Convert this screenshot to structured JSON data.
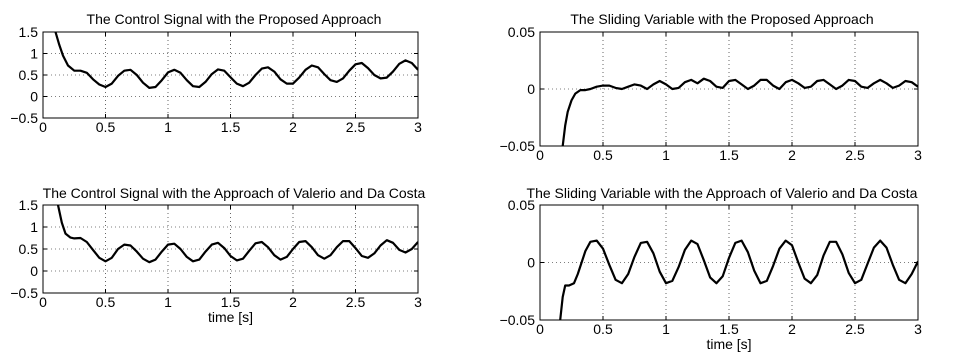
{
  "chart_data": [
    {
      "type": "line",
      "title": "The Control Signal with the Proposed Approach",
      "xlabel": "",
      "ylabel": "",
      "xlim": [
        0,
        3
      ],
      "ylim": [
        -0.5,
        1.5
      ],
      "xticks": [
        0,
        0.5,
        1,
        1.5,
        2,
        2.5,
        3
      ],
      "yticks": [
        -0.5,
        0,
        0.5,
        1,
        1.5
      ],
      "xtick_labels": [
        "0",
        "0.5",
        "1",
        "1.5",
        "2",
        "2.5",
        "3"
      ],
      "ytick_labels": [
        "−0.5",
        "0",
        "0.5",
        "1",
        "1.5"
      ],
      "grid": true,
      "series": [
        {
          "x": [
            0.1,
            0.13,
            0.16,
            0.2,
            0.25,
            0.3,
            0.35,
            0.4,
            0.45,
            0.5,
            0.55,
            0.6,
            0.65,
            0.7,
            0.75,
            0.8,
            0.85,
            0.9,
            0.95,
            1.0,
            1.05,
            1.1,
            1.15,
            1.2,
            1.25,
            1.3,
            1.35,
            1.4,
            1.45,
            1.5,
            1.55,
            1.6,
            1.65,
            1.7,
            1.75,
            1.8,
            1.85,
            1.9,
            1.95,
            2.0,
            2.05,
            2.1,
            2.15,
            2.2,
            2.25,
            2.3,
            2.35,
            2.4,
            2.45,
            2.5,
            2.55,
            2.6,
            2.65,
            2.7,
            2.75,
            2.8,
            2.85,
            2.9,
            2.95,
            3.0
          ],
          "y": [
            1.5,
            1.2,
            0.95,
            0.72,
            0.6,
            0.6,
            0.55,
            0.4,
            0.28,
            0.22,
            0.3,
            0.48,
            0.6,
            0.62,
            0.5,
            0.32,
            0.2,
            0.22,
            0.38,
            0.56,
            0.62,
            0.55,
            0.38,
            0.24,
            0.22,
            0.34,
            0.52,
            0.63,
            0.6,
            0.45,
            0.3,
            0.24,
            0.32,
            0.5,
            0.65,
            0.68,
            0.58,
            0.4,
            0.3,
            0.3,
            0.44,
            0.62,
            0.72,
            0.68,
            0.52,
            0.38,
            0.34,
            0.42,
            0.6,
            0.75,
            0.78,
            0.66,
            0.5,
            0.42,
            0.44,
            0.58,
            0.76,
            0.84,
            0.78,
            0.62
          ]
        }
      ]
    },
    {
      "type": "line",
      "title": "The Sliding Variable with the Proposed Approach",
      "xlabel": "",
      "ylabel": "",
      "xlim": [
        0,
        3
      ],
      "ylim": [
        -0.05,
        0.05
      ],
      "xticks": [
        0,
        0.5,
        1,
        1.5,
        2,
        2.5,
        3
      ],
      "yticks": [
        -0.05,
        0,
        0.05
      ],
      "xtick_labels": [
        "0",
        "0.5",
        "1",
        "1.5",
        "2",
        "2.5",
        "3"
      ],
      "ytick_labels": [
        "−0.05",
        "0",
        "0.05"
      ],
      "grid": true,
      "series": [
        {
          "x": [
            0.18,
            0.2,
            0.22,
            0.25,
            0.28,
            0.32,
            0.36,
            0.4,
            0.45,
            0.5,
            0.55,
            0.6,
            0.65,
            0.7,
            0.75,
            0.8,
            0.85,
            0.9,
            0.95,
            1.0,
            1.05,
            1.1,
            1.15,
            1.2,
            1.25,
            1.3,
            1.35,
            1.4,
            1.45,
            1.5,
            1.55,
            1.6,
            1.65,
            1.7,
            1.75,
            1.8,
            1.85,
            1.9,
            1.95,
            2.0,
            2.05,
            2.1,
            2.15,
            2.2,
            2.25,
            2.3,
            2.35,
            2.4,
            2.45,
            2.5,
            2.55,
            2.6,
            2.65,
            2.7,
            2.75,
            2.8,
            2.85,
            2.9,
            2.95,
            3.0
          ],
          "y": [
            -0.05,
            -0.032,
            -0.02,
            -0.01,
            -0.004,
            -0.001,
            -0.001,
            0.0,
            0.002,
            0.003,
            0.003,
            0.001,
            0.0,
            0.002,
            0.004,
            0.003,
            0.0,
            0.004,
            0.007,
            0.004,
            0.0,
            0.001,
            0.006,
            0.008,
            0.005,
            0.009,
            0.007,
            0.002,
            0.001,
            0.007,
            0.008,
            0.004,
            0.0,
            0.003,
            0.008,
            0.008,
            0.003,
            0.0,
            0.006,
            0.008,
            0.005,
            0.001,
            0.002,
            0.007,
            0.008,
            0.004,
            0.0,
            0.003,
            0.008,
            0.007,
            0.002,
            0.001,
            0.005,
            0.008,
            0.005,
            0.001,
            0.003,
            0.007,
            0.006,
            0.002
          ]
        }
      ]
    },
    {
      "type": "line",
      "title": "The Control Signal with the Approach of Valerio and Da Costa",
      "xlabel": "time [s]",
      "ylabel": "",
      "xlim": [
        0,
        3
      ],
      "ylim": [
        -0.5,
        1.5
      ],
      "xticks": [
        0,
        0.5,
        1,
        1.5,
        2,
        2.5,
        3
      ],
      "yticks": [
        -0.5,
        0,
        0.5,
        1,
        1.5
      ],
      "xtick_labels": [
        "0",
        "0.5",
        "1",
        "1.5",
        "2",
        "2.5",
        "3"
      ],
      "ytick_labels": [
        "−0.5",
        "0",
        "0.5",
        "1",
        "1.5"
      ],
      "grid": true,
      "series": [
        {
          "x": [
            0.12,
            0.15,
            0.18,
            0.22,
            0.25,
            0.3,
            0.35,
            0.4,
            0.45,
            0.5,
            0.55,
            0.6,
            0.65,
            0.7,
            0.75,
            0.8,
            0.85,
            0.9,
            0.95,
            1.0,
            1.05,
            1.1,
            1.15,
            1.2,
            1.25,
            1.3,
            1.35,
            1.4,
            1.45,
            1.5,
            1.55,
            1.6,
            1.65,
            1.7,
            1.75,
            1.8,
            1.85,
            1.9,
            1.95,
            2.0,
            2.05,
            2.1,
            2.15,
            2.2,
            2.25,
            2.3,
            2.35,
            2.4,
            2.45,
            2.5,
            2.55,
            2.6,
            2.65,
            2.7,
            2.75,
            2.8,
            2.85,
            2.9,
            2.95,
            3.0
          ],
          "y": [
            1.5,
            1.1,
            0.85,
            0.76,
            0.74,
            0.75,
            0.66,
            0.48,
            0.3,
            0.22,
            0.3,
            0.5,
            0.6,
            0.58,
            0.44,
            0.28,
            0.2,
            0.26,
            0.44,
            0.6,
            0.62,
            0.5,
            0.32,
            0.22,
            0.26,
            0.44,
            0.6,
            0.64,
            0.52,
            0.34,
            0.24,
            0.28,
            0.46,
            0.63,
            0.66,
            0.54,
            0.36,
            0.26,
            0.32,
            0.5,
            0.66,
            0.68,
            0.54,
            0.36,
            0.28,
            0.36,
            0.54,
            0.68,
            0.68,
            0.52,
            0.34,
            0.3,
            0.4,
            0.58,
            0.7,
            0.64,
            0.48,
            0.42,
            0.5,
            0.66
          ]
        }
      ]
    },
    {
      "type": "line",
      "title": "The Sliding Variable with the Approach of Valerio and Da Costa",
      "xlabel": "time [s]",
      "ylabel": "",
      "xlim": [
        0,
        3
      ],
      "ylim": [
        -0.05,
        0.05
      ],
      "xticks": [
        0,
        0.5,
        1,
        1.5,
        2,
        2.5,
        3
      ],
      "yticks": [
        -0.05,
        0,
        0.05
      ],
      "xtick_labels": [
        "0",
        "0.5",
        "1",
        "1.5",
        "2",
        "2.5",
        "3"
      ],
      "ytick_labels": [
        "−0.05",
        "0",
        "0.05"
      ],
      "grid": true,
      "series": [
        {
          "x": [
            0.16,
            0.18,
            0.2,
            0.23,
            0.27,
            0.3,
            0.33,
            0.36,
            0.4,
            0.45,
            0.5,
            0.55,
            0.6,
            0.65,
            0.7,
            0.75,
            0.8,
            0.85,
            0.9,
            0.95,
            1.0,
            1.05,
            1.1,
            1.15,
            1.2,
            1.25,
            1.3,
            1.35,
            1.4,
            1.45,
            1.5,
            1.55,
            1.6,
            1.65,
            1.7,
            1.75,
            1.8,
            1.85,
            1.9,
            1.95,
            2.0,
            2.05,
            2.1,
            2.15,
            2.2,
            2.25,
            2.3,
            2.35,
            2.4,
            2.45,
            2.5,
            2.55,
            2.6,
            2.65,
            2.7,
            2.75,
            2.8,
            2.85,
            2.9,
            2.95,
            3.0
          ],
          "y": [
            -0.05,
            -0.03,
            -0.02,
            -0.02,
            -0.018,
            -0.01,
            0.0,
            0.01,
            0.018,
            0.019,
            0.012,
            -0.002,
            -0.015,
            -0.018,
            -0.01,
            0.005,
            0.017,
            0.018,
            0.008,
            -0.008,
            -0.018,
            -0.016,
            -0.004,
            0.011,
            0.019,
            0.016,
            0.002,
            -0.013,
            -0.018,
            -0.012,
            0.004,
            0.017,
            0.019,
            0.009,
            -0.007,
            -0.018,
            -0.016,
            -0.003,
            0.012,
            0.019,
            0.015,
            0.0,
            -0.014,
            -0.018,
            -0.011,
            0.006,
            0.018,
            0.018,
            0.007,
            -0.009,
            -0.018,
            -0.015,
            -0.001,
            0.013,
            0.019,
            0.013,
            -0.002,
            -0.015,
            -0.018,
            -0.01,
            0.001
          ]
        }
      ]
    }
  ]
}
